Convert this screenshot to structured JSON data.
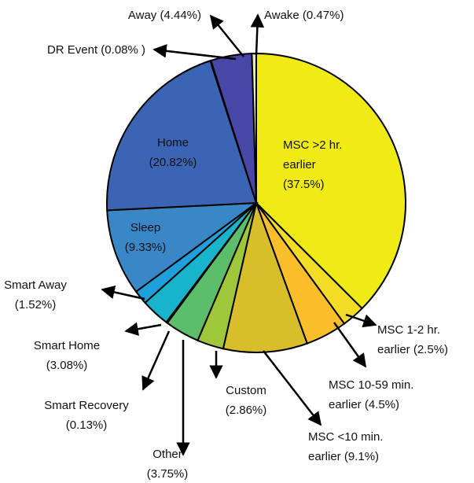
{
  "chart_data": {
    "type": "pie",
    "categories": [
      "MSC >2 hr. earlier",
      "MSC 1-2 hr. earlier",
      "MSC 10-59 min. earlier",
      "MSC <10 min. earlier",
      "Custom",
      "Other",
      "Smart Recovery",
      "Smart Home",
      "Smart Away",
      "Sleep",
      "Home",
      "DR Event",
      "Away",
      "Awake"
    ],
    "values": [
      37.5,
      2.5,
      4.5,
      9.1,
      2.86,
      3.75,
      0.13,
      3.08,
      1.52,
      9.33,
      20.82,
      0.08,
      4.44,
      0.47
    ],
    "labels": [
      [
        "MSC >2 hr.",
        "earlier",
        "(37.5%)"
      ],
      [
        "MSC 1-2 hr.",
        "earlier (2.5%)"
      ],
      [
        "MSC 10-59 min.",
        "earlier (4.5%)"
      ],
      [
        "MSC <10 min.",
        "earlier (9.1%)"
      ],
      [
        "Custom",
        "(2.86%)"
      ],
      [
        "Other",
        "(3.75%)"
      ],
      [
        "Smart Recovery",
        "(0.13%)"
      ],
      [
        "Smart Home",
        "(3.08%)"
      ],
      [
        "Smart Away",
        "(1.52%)"
      ],
      [
        "Sleep",
        "(9.33%)"
      ],
      [
        "Home",
        "(20.82%)"
      ],
      [
        "DR Event (0.08% )"
      ],
      [
        "Away (4.44%)"
      ],
      [
        "Awake (0.47%)"
      ]
    ],
    "colors": [
      "#f0eb14",
      "#f3dc26",
      "#fbbe2b",
      "#d9be2b",
      "#9fc73c",
      "#5cbd6b",
      "#3ab99a",
      "#17b4cc",
      "#1fa0dc",
      "#3a87c8",
      "#3c64b4",
      "#3f50ab",
      "#4747a8",
      "#e8e8c0"
    ]
  }
}
